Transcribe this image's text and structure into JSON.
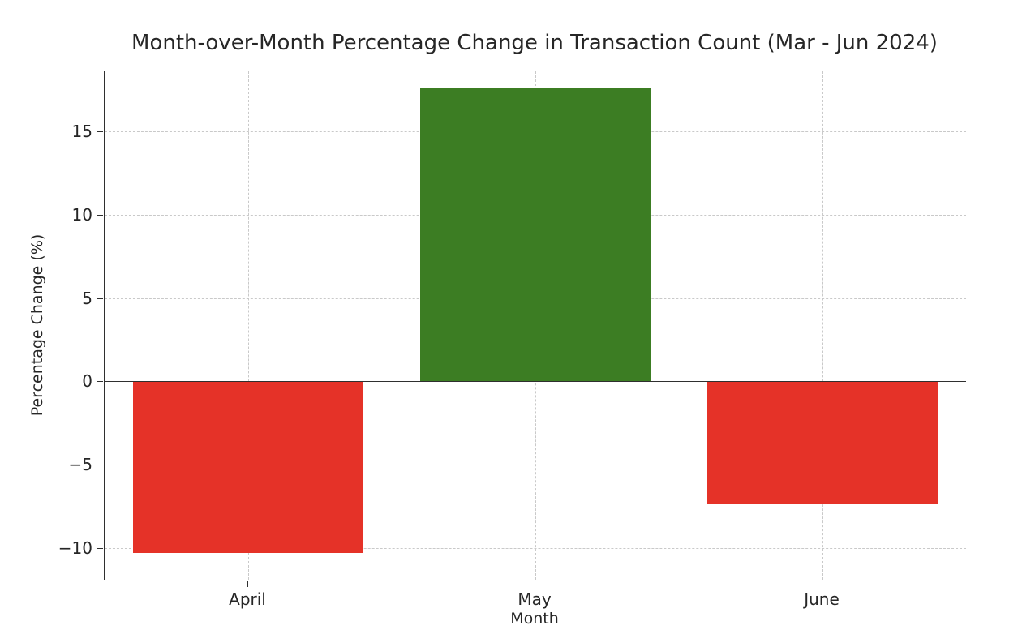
{
  "chart_data": {
    "type": "bar",
    "title": "Month-over-Month Percentage Change in Transaction Count (Mar - Jun 2024)",
    "xlabel": "Month",
    "ylabel": "Percentage Change (%)",
    "categories": [
      "April",
      "May",
      "June"
    ],
    "values": [
      -10.3,
      17.6,
      -7.4
    ],
    "bar_colors": [
      "#e53228",
      "#3c7d23",
      "#e53228"
    ],
    "positive_color": "#3c7d23",
    "negative_color": "#e53228",
    "ylim": [
      -11.9,
      18.6
    ],
    "ytick_values": [
      -10,
      -5,
      0,
      5,
      10,
      15
    ],
    "ytick_labels": [
      "−10",
      "−5",
      "0",
      "5",
      "10",
      "15"
    ],
    "grid": "dashed",
    "grid_color": "#c9c9c9",
    "zero_line": true,
    "legend": "none"
  }
}
